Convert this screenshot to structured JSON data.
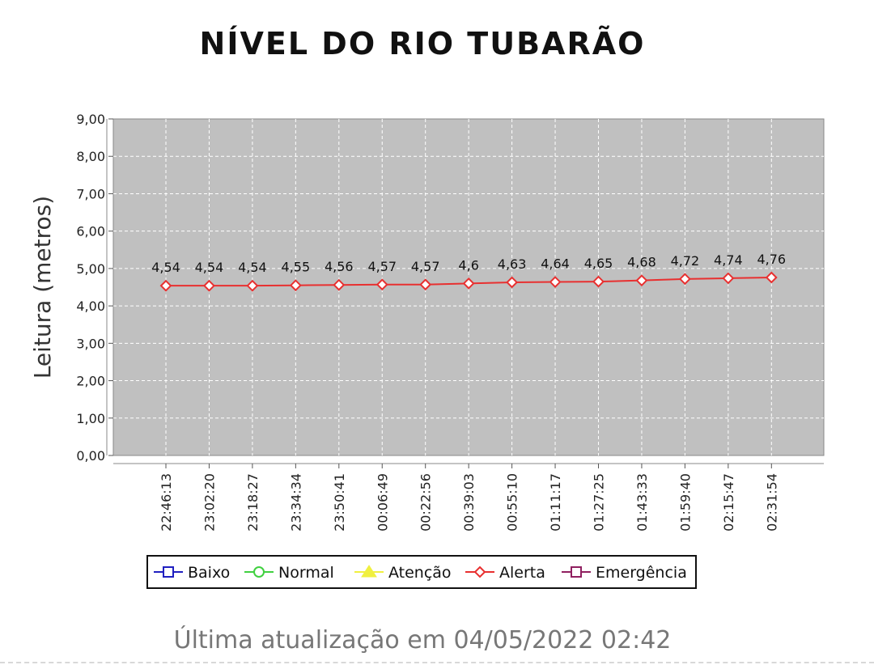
{
  "title": "NÍVEL DO RIO TUBARÃO",
  "footer": "Última atualização em 04/05/2022 02:42",
  "chart_data": {
    "type": "line",
    "ylabel": "Leitura (metros)",
    "ylim": [
      0,
      9
    ],
    "yticks": [
      "0,00",
      "1,00",
      "2,00",
      "3,00",
      "4,00",
      "5,00",
      "6,00",
      "7,00",
      "8,00",
      "9,00"
    ],
    "grid": true,
    "background": "#c0c0c0",
    "x": [
      "22:46:13",
      "23:02:20",
      "23:18:27",
      "23:34:34",
      "23:50:41",
      "00:06:49",
      "00:22:56",
      "00:39:03",
      "00:55:10",
      "01:11:17",
      "01:27:25",
      "01:43:33",
      "01:59:40",
      "02:15:47",
      "02:31:54"
    ],
    "series": [
      {
        "name": "Alerta",
        "color": "#e83030",
        "values": [
          4.54,
          4.54,
          4.54,
          4.55,
          4.56,
          4.57,
          4.57,
          4.6,
          4.63,
          4.64,
          4.65,
          4.68,
          4.72,
          4.74,
          4.76
        ],
        "labels": [
          "4,54",
          "4,54",
          "4,54",
          "4,55",
          "4,56",
          "4,57",
          "4,57",
          "4,6",
          "4,63",
          "4,64",
          "4,65",
          "4,68",
          "4,72",
          "4,74",
          "4,76"
        ]
      }
    ],
    "legend": {
      "position": "bottom",
      "entries": [
        {
          "name": "Baixo",
          "color": "#2020c0",
          "marker": "square"
        },
        {
          "name": "Normal",
          "color": "#40d040",
          "marker": "circle"
        },
        {
          "name": "Atenção",
          "color": "#f0f040",
          "marker": "triangle"
        },
        {
          "name": "Alerta",
          "color": "#e83030",
          "marker": "diamond"
        },
        {
          "name": "Emergência",
          "color": "#902060",
          "marker": "square"
        }
      ]
    }
  }
}
